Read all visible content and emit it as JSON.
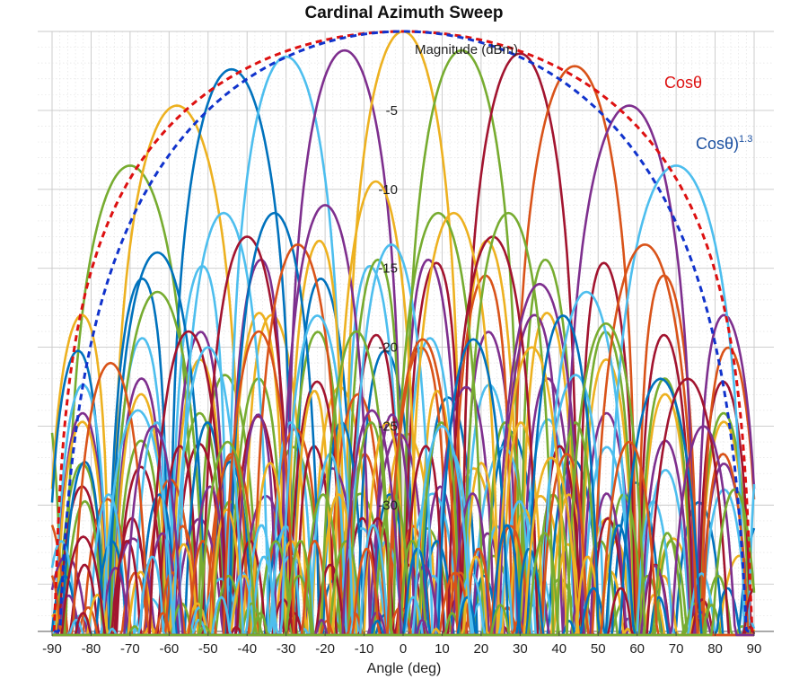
{
  "chart_data": {
    "type": "line",
    "title": "Cardinal Azimuth Sweep",
    "xlabel": "Angle (deg)",
    "ylabel": "Magnitude (dBm)",
    "xlim": [
      -90,
      90
    ],
    "ylim": [
      -38,
      0
    ],
    "x_ticks": [
      "-90",
      "-80",
      "-70",
      "-60",
      "-50",
      "-40",
      "-30",
      "-20",
      "-10",
      "0",
      "10",
      "20",
      "30",
      "40",
      "50",
      "60",
      "70",
      "80",
      "90"
    ],
    "y_ticks": [
      "-5",
      "-10",
      "-15",
      "-20",
      "-25",
      "-30"
    ],
    "y_tick_values": [
      -5,
      -10,
      -15,
      -20,
      -25,
      -30
    ],
    "grid": "on (major and minor, dotted)",
    "palette": [
      "#0072BD",
      "#D95319",
      "#EDB120",
      "#7E2F8E",
      "#77AC30",
      "#4DBEEE",
      "#A2142F"
    ],
    "envelopes": [
      {
        "name": "Cosθ",
        "label_main": "Cosθ",
        "label_sup": "",
        "color": "#DD1111",
        "exponent": 1.0
      },
      {
        "name": "Cosθ)^1.3",
        "label_main": "Cosθ)",
        "label_sup": "1.3",
        "color": "#1133CC",
        "exponent": 1.3
      }
    ],
    "series": [
      {
        "peak_angle": -70,
        "peak_db": -8.5,
        "color": "#77AC30",
        "lobe_width": 17
      },
      {
        "peak_angle": -58,
        "peak_db": -4.7,
        "color": "#EDB120",
        "lobe_width": 17
      },
      {
        "peak_angle": -44,
        "peak_db": -2.4,
        "color": "#0072BD",
        "lobe_width": 16
      },
      {
        "peak_angle": -30,
        "peak_db": -1.6,
        "color": "#4DBEEE",
        "lobe_width": 15
      },
      {
        "peak_angle": -15,
        "peak_db": -1.2,
        "color": "#7E2F8E",
        "lobe_width": 15
      },
      {
        "peak_angle": 0,
        "peak_db": 0.0,
        "color": "#EDB120",
        "lobe_width": 15
      },
      {
        "peak_angle": 15,
        "peak_db": -1.2,
        "color": "#77AC30",
        "lobe_width": 15
      },
      {
        "peak_angle": 30,
        "peak_db": -1.4,
        "color": "#A2142F",
        "lobe_width": 15
      },
      {
        "peak_angle": 44,
        "peak_db": -2.2,
        "color": "#D95319",
        "lobe_width": 16
      },
      {
        "peak_angle": 58,
        "peak_db": -4.7,
        "color": "#7E2F8E",
        "lobe_width": 17
      },
      {
        "peak_angle": 70,
        "peak_db": -8.5,
        "color": "#4DBEEE",
        "lobe_width": 18
      },
      {
        "peak_angle": -63,
        "peak_db": -14.0,
        "color": "#0072BD",
        "lobe_width": 13
      },
      {
        "peak_angle": -63,
        "peak_db": -16.5,
        "color": "#77AC30",
        "lobe_width": 13
      },
      {
        "peak_angle": -46,
        "peak_db": -11.5,
        "color": "#4DBEEE",
        "lobe_width": 12
      },
      {
        "peak_angle": -40,
        "peak_db": -13.0,
        "color": "#A2142F",
        "lobe_width": 12
      },
      {
        "peak_angle": -33,
        "peak_db": -11.5,
        "color": "#0072BD",
        "lobe_width": 12
      },
      {
        "peak_angle": -27,
        "peak_db": -13.5,
        "color": "#D95319",
        "lobe_width": 12
      },
      {
        "peak_angle": -20,
        "peak_db": -11.0,
        "color": "#7E2F8E",
        "lobe_width": 12
      },
      {
        "peak_angle": -7,
        "peak_db": -9.5,
        "color": "#EDB120",
        "lobe_width": 11
      },
      {
        "peak_angle": -3,
        "peak_db": -13.5,
        "color": "#4DBEEE",
        "lobe_width": 11
      },
      {
        "peak_angle": 9,
        "peak_db": -11.5,
        "color": "#77AC30",
        "lobe_width": 12
      },
      {
        "peak_angle": 13,
        "peak_db": -11.5,
        "color": "#EDB120",
        "lobe_width": 12
      },
      {
        "peak_angle": 23,
        "peak_db": -13.0,
        "color": "#A2142F",
        "lobe_width": 12
      },
      {
        "peak_angle": 27,
        "peak_db": -11.5,
        "color": "#77AC30",
        "lobe_width": 12
      },
      {
        "peak_angle": 35,
        "peak_db": -16.0,
        "color": "#7E2F8E",
        "lobe_width": 12
      },
      {
        "peak_angle": 47,
        "peak_db": -16.5,
        "color": "#4DBEEE",
        "lobe_width": 12
      },
      {
        "peak_angle": 62,
        "peak_db": -13.5,
        "color": "#D95319",
        "lobe_width": 14
      },
      {
        "peak_angle": -75,
        "peak_db": -21.0,
        "color": "#D95319",
        "lobe_width": 11
      },
      {
        "peak_angle": -68,
        "peak_db": -24.0,
        "color": "#4DBEEE",
        "lobe_width": 11
      },
      {
        "peak_angle": -55,
        "peak_db": -19.0,
        "color": "#A2142F",
        "lobe_width": 11
      },
      {
        "peak_angle": -50,
        "peak_db": -20.0,
        "color": "#4DBEEE",
        "lobe_width": 10
      },
      {
        "peak_angle": -37,
        "peak_db": -19.0,
        "color": "#D95319",
        "lobe_width": 10
      },
      {
        "peak_angle": -22,
        "peak_db": -18.0,
        "color": "#4DBEEE",
        "lobe_width": 10
      },
      {
        "peak_angle": -12,
        "peak_db": -19.0,
        "color": "#77AC30",
        "lobe_width": 10
      },
      {
        "peak_angle": 5,
        "peak_db": -19.5,
        "color": "#D95319",
        "lobe_width": 10
      },
      {
        "peak_angle": 18,
        "peak_db": -19.5,
        "color": "#0072BD",
        "lobe_width": 10
      },
      {
        "peak_angle": 33,
        "peak_db": -20.0,
        "color": "#EDB120",
        "lobe_width": 10
      },
      {
        "peak_angle": 41,
        "peak_db": -18.0,
        "color": "#0072BD",
        "lobe_width": 10
      },
      {
        "peak_angle": 52,
        "peak_db": -18.5,
        "color": "#77AC30",
        "lobe_width": 11
      },
      {
        "peak_angle": 66,
        "peak_db": -22.0,
        "color": "#0072BD",
        "lobe_width": 12
      },
      {
        "peak_angle": 73,
        "peak_db": -22.0,
        "color": "#A2142F",
        "lobe_width": 12
      },
      {
        "peak_angle": -82,
        "peak_db": -32.0,
        "color": "#A2142F",
        "lobe_width": 9
      },
      {
        "peak_angle": -64,
        "peak_db": -25.0,
        "color": "#7E2F8E",
        "lobe_width": 9
      },
      {
        "peak_angle": -45,
        "peak_db": -26.0,
        "color": "#77AC30",
        "lobe_width": 9
      },
      {
        "peak_angle": -8,
        "peak_db": -24.0,
        "color": "#7E2F8E",
        "lobe_width": 9
      },
      {
        "peak_angle": 10,
        "peak_db": -25.0,
        "color": "#4DBEEE",
        "lobe_width": 9
      },
      {
        "peak_angle": 38,
        "peak_db": -27.0,
        "color": "#EDB120",
        "lobe_width": 9
      },
      {
        "peak_angle": 58,
        "peak_db": -26.0,
        "color": "#D95319",
        "lobe_width": 9
      },
      {
        "peak_angle": 77,
        "peak_db": -25.0,
        "color": "#7E2F8E",
        "lobe_width": 10
      },
      {
        "peak_angle": 85,
        "peak_db": -29.0,
        "color": "#77AC30",
        "lobe_width": 8
      }
    ]
  }
}
